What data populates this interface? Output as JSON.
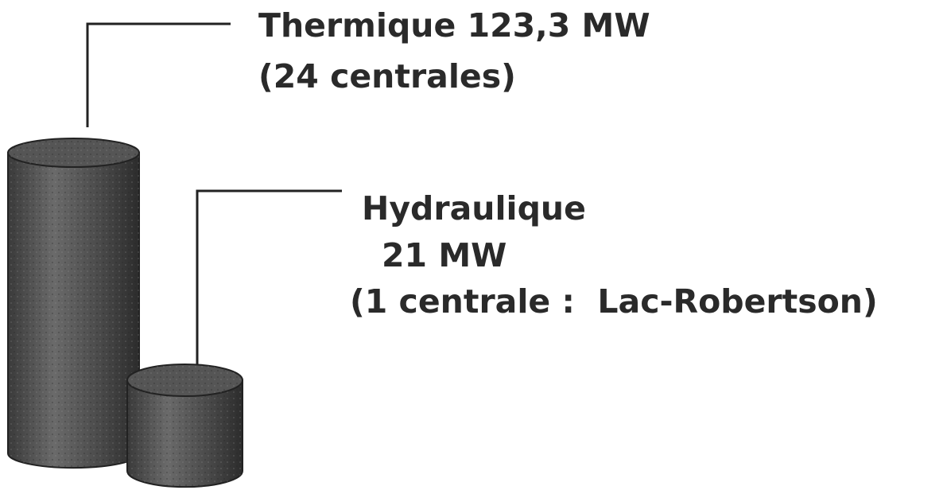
{
  "labels": [
    {
      "lines": [
        "Thermique 123,3 MW",
        "(24 centrales)"
      ]
    },
    {
      "lines": [
        "Hydraulique",
        "21 MW",
        "(1 centrale :  Lac-Robertson)"
      ]
    }
  ]
}
